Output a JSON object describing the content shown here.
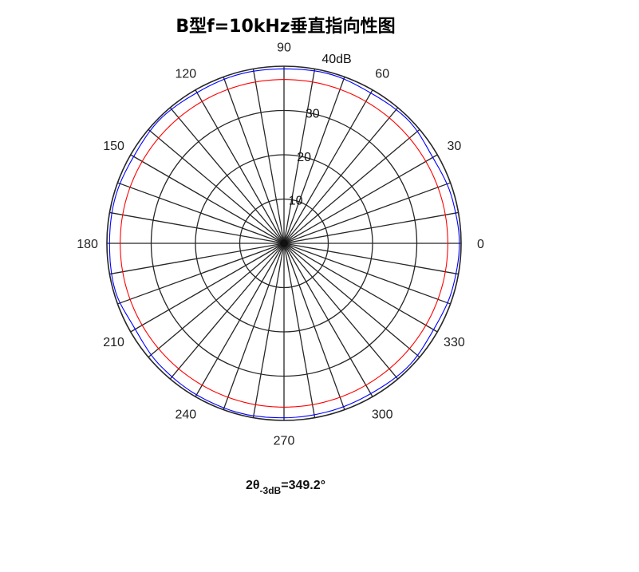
{
  "chart_data": {
    "type": "polar",
    "title": "B型f=10kHz垂直指向性图",
    "r_unit_label": "40dB",
    "r_max": 40,
    "r_ticks": [
      10,
      20,
      30
    ],
    "r_tick_labels": [
      "10",
      "20",
      "30"
    ],
    "theta_grid_step_deg": 10,
    "theta_tick_labels": [
      "0",
      "30",
      "60",
      "90",
      "120",
      "150",
      "180",
      "210",
      "240",
      "270",
      "300",
      "330"
    ],
    "grid": true,
    "series": [
      {
        "color": "#ff0000",
        "theta_deg": [
          0,
          90,
          180,
          270
        ],
        "r": [
          37,
          37,
          37,
          37
        ]
      },
      {
        "color": "#0000ff",
        "theta_deg": [
          0,
          15,
          30,
          45,
          60,
          75,
          90,
          105,
          120,
          135,
          150,
          165,
          180,
          195,
          210,
          225,
          240,
          255,
          270,
          285,
          300,
          315,
          330,
          345
        ],
        "r": [
          39.6,
          39.3,
          38.8,
          39.5,
          39.2,
          39.6,
          39.4,
          39.5,
          39.3,
          39.6,
          39.2,
          39.5,
          39.4,
          39.6,
          38.8,
          39.3,
          39.5,
          39.6,
          39.4,
          39.3,
          39.2,
          39.5,
          39.0,
          39.4
        ]
      }
    ],
    "annotation": {
      "main": "2θ",
      "sub": "-3dB",
      "value": "=349.2°"
    }
  }
}
